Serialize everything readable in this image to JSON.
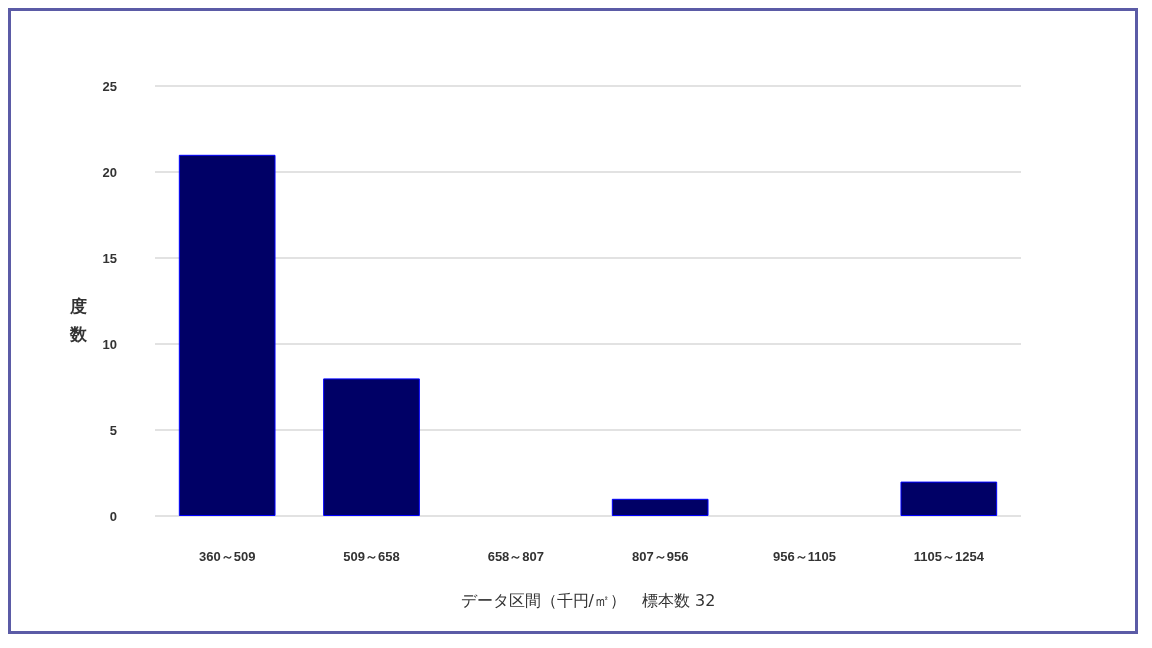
{
  "chart_data": {
    "type": "bar",
    "categories": [
      "360～509",
      "509～658",
      "658～807",
      "807～956",
      "956～1105",
      "1105～1254"
    ],
    "values": [
      21,
      8,
      0,
      1,
      0,
      2
    ],
    "color": "#000066",
    "xlabel": "データ区間（千円/㎡）　標本数 32",
    "ylabel": "度数",
    "ylim": [
      0,
      25
    ],
    "yticks": [
      0,
      5,
      10,
      15,
      20,
      25
    ],
    "grid": "y"
  }
}
